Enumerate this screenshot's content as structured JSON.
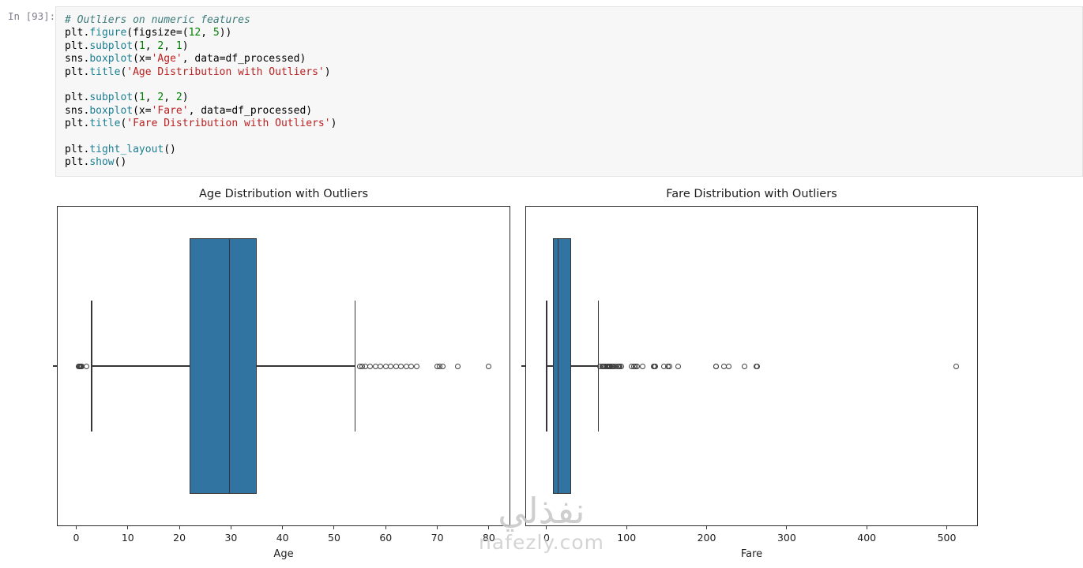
{
  "notebook": {
    "prompt": "In [93]:"
  },
  "code": {
    "lines": [
      [
        [
          "com",
          "# Outliers on numeric features"
        ]
      ],
      [
        [
          "txt",
          "plt."
        ],
        [
          "fn",
          "figure"
        ],
        [
          "txt",
          "(figsize=("
        ],
        [
          "num",
          "12"
        ],
        [
          "txt",
          ", "
        ],
        [
          "num",
          "5"
        ],
        [
          "txt",
          "))"
        ]
      ],
      [
        [
          "txt",
          "plt."
        ],
        [
          "fn",
          "subplot"
        ],
        [
          "txt",
          "("
        ],
        [
          "num",
          "1"
        ],
        [
          "txt",
          ", "
        ],
        [
          "num",
          "2"
        ],
        [
          "txt",
          ", "
        ],
        [
          "num",
          "1"
        ],
        [
          "txt",
          ")"
        ]
      ],
      [
        [
          "txt",
          "sns."
        ],
        [
          "fn",
          "boxplot"
        ],
        [
          "txt",
          "(x="
        ],
        [
          "str",
          "'Age'"
        ],
        [
          "txt",
          ", data=df_processed)"
        ]
      ],
      [
        [
          "txt",
          "plt."
        ],
        [
          "fn",
          "title"
        ],
        [
          "txt",
          "("
        ],
        [
          "str",
          "'Age Distribution with Outliers'"
        ],
        [
          "txt",
          ")"
        ]
      ],
      [],
      [
        [
          "txt",
          "plt."
        ],
        [
          "fn",
          "subplot"
        ],
        [
          "txt",
          "("
        ],
        [
          "num",
          "1"
        ],
        [
          "txt",
          ", "
        ],
        [
          "num",
          "2"
        ],
        [
          "txt",
          ", "
        ],
        [
          "num",
          "2"
        ],
        [
          "txt",
          ")"
        ]
      ],
      [
        [
          "txt",
          "sns."
        ],
        [
          "fn",
          "boxplot"
        ],
        [
          "txt",
          "(x="
        ],
        [
          "str",
          "'Fare'"
        ],
        [
          "txt",
          ", data=df_processed)"
        ]
      ],
      [
        [
          "txt",
          "plt."
        ],
        [
          "fn",
          "title"
        ],
        [
          "txt",
          "("
        ],
        [
          "str",
          "'Fare Distribution with Outliers'"
        ],
        [
          "txt",
          ")"
        ]
      ],
      [],
      [
        [
          "txt",
          "plt."
        ],
        [
          "fn",
          "tight_layout"
        ],
        [
          "txt",
          "()"
        ]
      ],
      [
        [
          "txt",
          "plt."
        ],
        [
          "fn",
          "show"
        ],
        [
          "txt",
          "()"
        ]
      ]
    ]
  },
  "chart_data": [
    {
      "type": "boxplot",
      "orientation": "horizontal",
      "title": "Age Distribution with Outliers",
      "xlabel": "Age",
      "ylabel": "",
      "xticks": [
        0,
        10,
        20,
        30,
        40,
        50,
        60,
        70,
        80
      ],
      "xlim": [
        -3.6,
        84.0
      ],
      "grid": false,
      "legend": false,
      "box": {
        "whisker_low": 3,
        "q1": 22,
        "median": 29.7,
        "q3": 35,
        "whisker_high": 54,
        "outliers_low": [
          0.42,
          0.67,
          0.75,
          0.83,
          0.92,
          1,
          2
        ],
        "outliers_high": [
          55,
          55.5,
          56,
          57,
          58,
          59,
          60,
          61,
          62,
          63,
          64,
          65,
          66,
          70,
          70.5,
          71,
          74,
          80
        ]
      }
    },
    {
      "type": "boxplot",
      "orientation": "horizontal",
      "title": "Fare Distribution with Outliers",
      "xlabel": "Fare",
      "ylabel": "",
      "xticks": [
        0,
        100,
        200,
        300,
        400,
        500
      ],
      "xlim": [
        -25.6,
        538.0
      ],
      "grid": false,
      "legend": false,
      "box": {
        "whisker_low": 0,
        "q1": 7.9,
        "median": 14.45,
        "q3": 31,
        "whisker_high": 65,
        "outliers_low": [],
        "outliers_high": [
          66.6,
          69.3,
          69.55,
          71,
          71.28,
          73.5,
          75.25,
          76.29,
          76.73,
          77.29,
          77.96,
          78.27,
          78.85,
          79.2,
          79.65,
          80,
          81.86,
          82.17,
          83.16,
          83.47,
          86.5,
          89.1,
          90,
          91.08,
          93.5,
          106.43,
          108.9,
          110.88,
          113.28,
          120,
          133.65,
          134.5,
          135.63,
          146.52,
          151.55,
          153.46,
          164.87,
          211.34,
          211.5,
          221.78,
          227.53,
          247.52,
          262.38,
          263,
          512.33
        ]
      }
    }
  ],
  "watermark": {
    "arabic": "نفذلي",
    "latin": "nafezly.com"
  },
  "colors": {
    "cell_bg": "#f7f7f7",
    "cell_border": "#e2e2e2",
    "prompt": "#7d7d8e",
    "tok_txt": "#000000",
    "tok_com": "#3d7b7b",
    "tok_str": "#ba2121",
    "tok_num": "#008000",
    "tok_fn": "#1a7f93",
    "box_fill": "#3274a1",
    "box_edge": "#363636",
    "spine": "#2a2a2a",
    "tick_text": "#1f1f1f",
    "watermark": "#c6c6c6"
  }
}
